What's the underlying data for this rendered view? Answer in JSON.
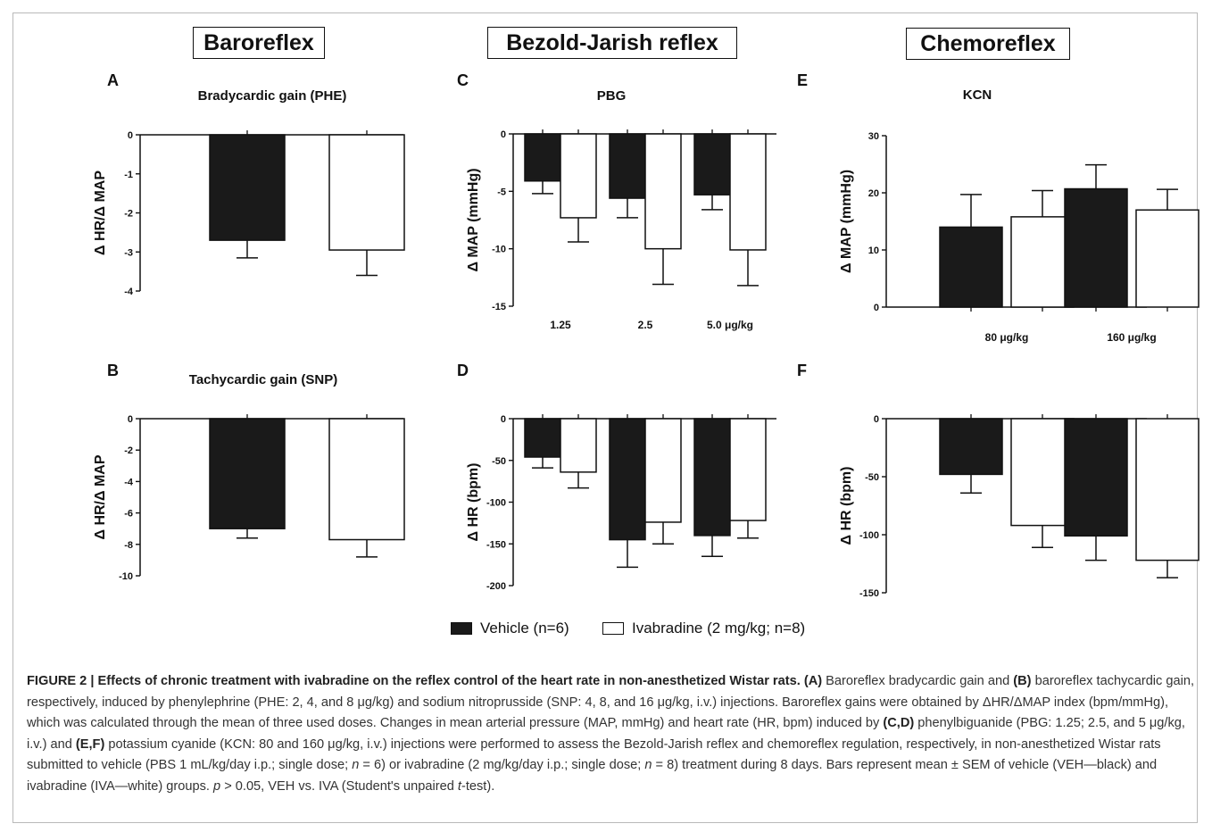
{
  "sections": {
    "baroreflex": "Baroreflex",
    "bezold": "Bezold-Jarish reflex",
    "chemoreflex": "Chemoreflex"
  },
  "colors": {
    "vehicle": "#1a1a1a",
    "ivabradine": "#ffffff",
    "axis": "#111111"
  },
  "legend": [
    {
      "label": "Vehicle (n=6)",
      "color": "#1a1a1a"
    },
    {
      "label": "Ivabradine (2 mg/kg; n=8)",
      "color": "#ffffff"
    }
  ],
  "chart_data": [
    {
      "id": "A",
      "type": "bar",
      "letter": "A",
      "title": "Bradycardic gain  (PHE)",
      "ylabel": "Δ  HR/Δ MAP",
      "ylim": [
        -4,
        0
      ],
      "yticks": [
        0,
        -1,
        -2,
        -3,
        -4
      ],
      "categories": [
        ""
      ],
      "series": [
        {
          "values": [
            -2.7
          ],
          "errors": [
            0.45
          ]
        },
        {
          "values": [
            -2.95
          ],
          "errors": [
            0.65
          ]
        }
      ]
    },
    {
      "id": "B",
      "type": "bar",
      "letter": "B",
      "title": "Tachycardic gain (SNP)",
      "ylabel": "Δ  HR/Δ MAP",
      "ylim": [
        -10,
        0
      ],
      "yticks": [
        0,
        -2,
        -4,
        -6,
        -8,
        -10
      ],
      "categories": [
        ""
      ],
      "series": [
        {
          "values": [
            -7.0
          ],
          "errors": [
            0.6
          ]
        },
        {
          "values": [
            -7.7
          ],
          "errors": [
            1.1
          ]
        }
      ]
    },
    {
      "id": "C",
      "type": "bar",
      "letter": "C",
      "title": "PBG",
      "ylabel": "Δ  MAP (mmHg)",
      "ylim": [
        -15,
        0
      ],
      "yticks": [
        0,
        -5,
        -10,
        -15
      ],
      "categories": [
        "1.25",
        "2.5",
        "5.0 μg/kg"
      ],
      "series": [
        {
          "values": [
            -4.1,
            -5.6,
            -5.3
          ],
          "errors": [
            1.1,
            1.7,
            1.3
          ]
        },
        {
          "values": [
            -7.3,
            -10.0,
            -10.1
          ],
          "errors": [
            2.1,
            3.1,
            3.1
          ]
        }
      ]
    },
    {
      "id": "D",
      "type": "bar",
      "letter": "D",
      "title": "",
      "ylabel": "Δ HR (bpm)",
      "ylim": [
        -200,
        0
      ],
      "yticks": [
        0,
        -50,
        -100,
        -150,
        -200
      ],
      "categories": [
        "",
        "",
        ""
      ],
      "series": [
        {
          "values": [
            -46,
            -145,
            -140
          ],
          "errors": [
            13,
            33,
            25
          ]
        },
        {
          "values": [
            -64,
            -124,
            -122
          ],
          "errors": [
            19,
            26,
            21
          ]
        }
      ]
    },
    {
      "id": "E",
      "type": "bar",
      "letter": "E",
      "title": "KCN",
      "ylabel": "Δ  MAP (mmHg)",
      "ylim": [
        0,
        30
      ],
      "yticks": [
        0,
        10,
        20,
        30
      ],
      "categories": [
        "80 μg/kg",
        "160 μg/kg"
      ],
      "series": [
        {
          "values": [
            14,
            20.7
          ],
          "errors": [
            5.7,
            4.2
          ]
        },
        {
          "values": [
            15.8,
            17.0
          ],
          "errors": [
            4.6,
            3.6
          ]
        }
      ]
    },
    {
      "id": "F",
      "type": "bar",
      "letter": "F",
      "title": "",
      "ylabel": "Δ HR (bpm)",
      "ylim": [
        -150,
        0
      ],
      "yticks": [
        0,
        -50,
        -100,
        -150
      ],
      "categories": [
        "",
        ""
      ],
      "series": [
        {
          "values": [
            -48,
            -101
          ],
          "errors": [
            16,
            21
          ]
        },
        {
          "values": [
            -92,
            -122
          ],
          "errors": [
            19,
            15
          ]
        }
      ]
    }
  ],
  "caption": {
    "figure_label": "FIGURE 2 | Effects of chronic treatment with ivabradine on the reflex control of the heart rate in non-anesthetized Wistar rats.",
    "t1": "(A)",
    "t2": " Baroreflex bradycardic gain and ",
    "t3": "(B)",
    "t4": " baroreflex tachycardic gain, respectively, induced by phenylephrine (PHE: 2, 4, and 8 μg/kg) and sodium nitroprusside (SNP: 4, 8, and 16 μg/kg, i.v.) injections. Baroreflex gains were obtained by ΔHR/ΔMAP index (bpm/mmHg), which was calculated through the mean of three used doses. Changes in mean arterial pressure (MAP, mmHg) and heart rate (HR, bpm) induced by ",
    "t5": "(C,D)",
    "t6": " phenylbiguanide (PBG: 1.25; 2.5, and 5 μg/kg, i.v.) and ",
    "t7": "(E,F)",
    "t8": " potassium cyanide (KCN: 80 and 160 μg/kg, i.v.) injections were performed to assess the Bezold-Jarish reflex and chemoreflex regulation, respectively, in non-anesthetized Wistar rats submitted to vehicle (PBS 1 mL/kg/day i.p.; single dose; ",
    "t9": "n",
    "t10": " = 6) or ivabradine (2 mg/kg/day i.p.; single dose; ",
    "t11": "n",
    "t12": " = 8) treatment during 8 days. Bars represent mean ± SEM of vehicle (VEH—black) and ivabradine (IVA—white) groups. ",
    "t13": "p",
    "t14": " > 0.05, VEH vs. IVA (Student's unpaired ",
    "t15": "t",
    "t16": "-test)."
  }
}
